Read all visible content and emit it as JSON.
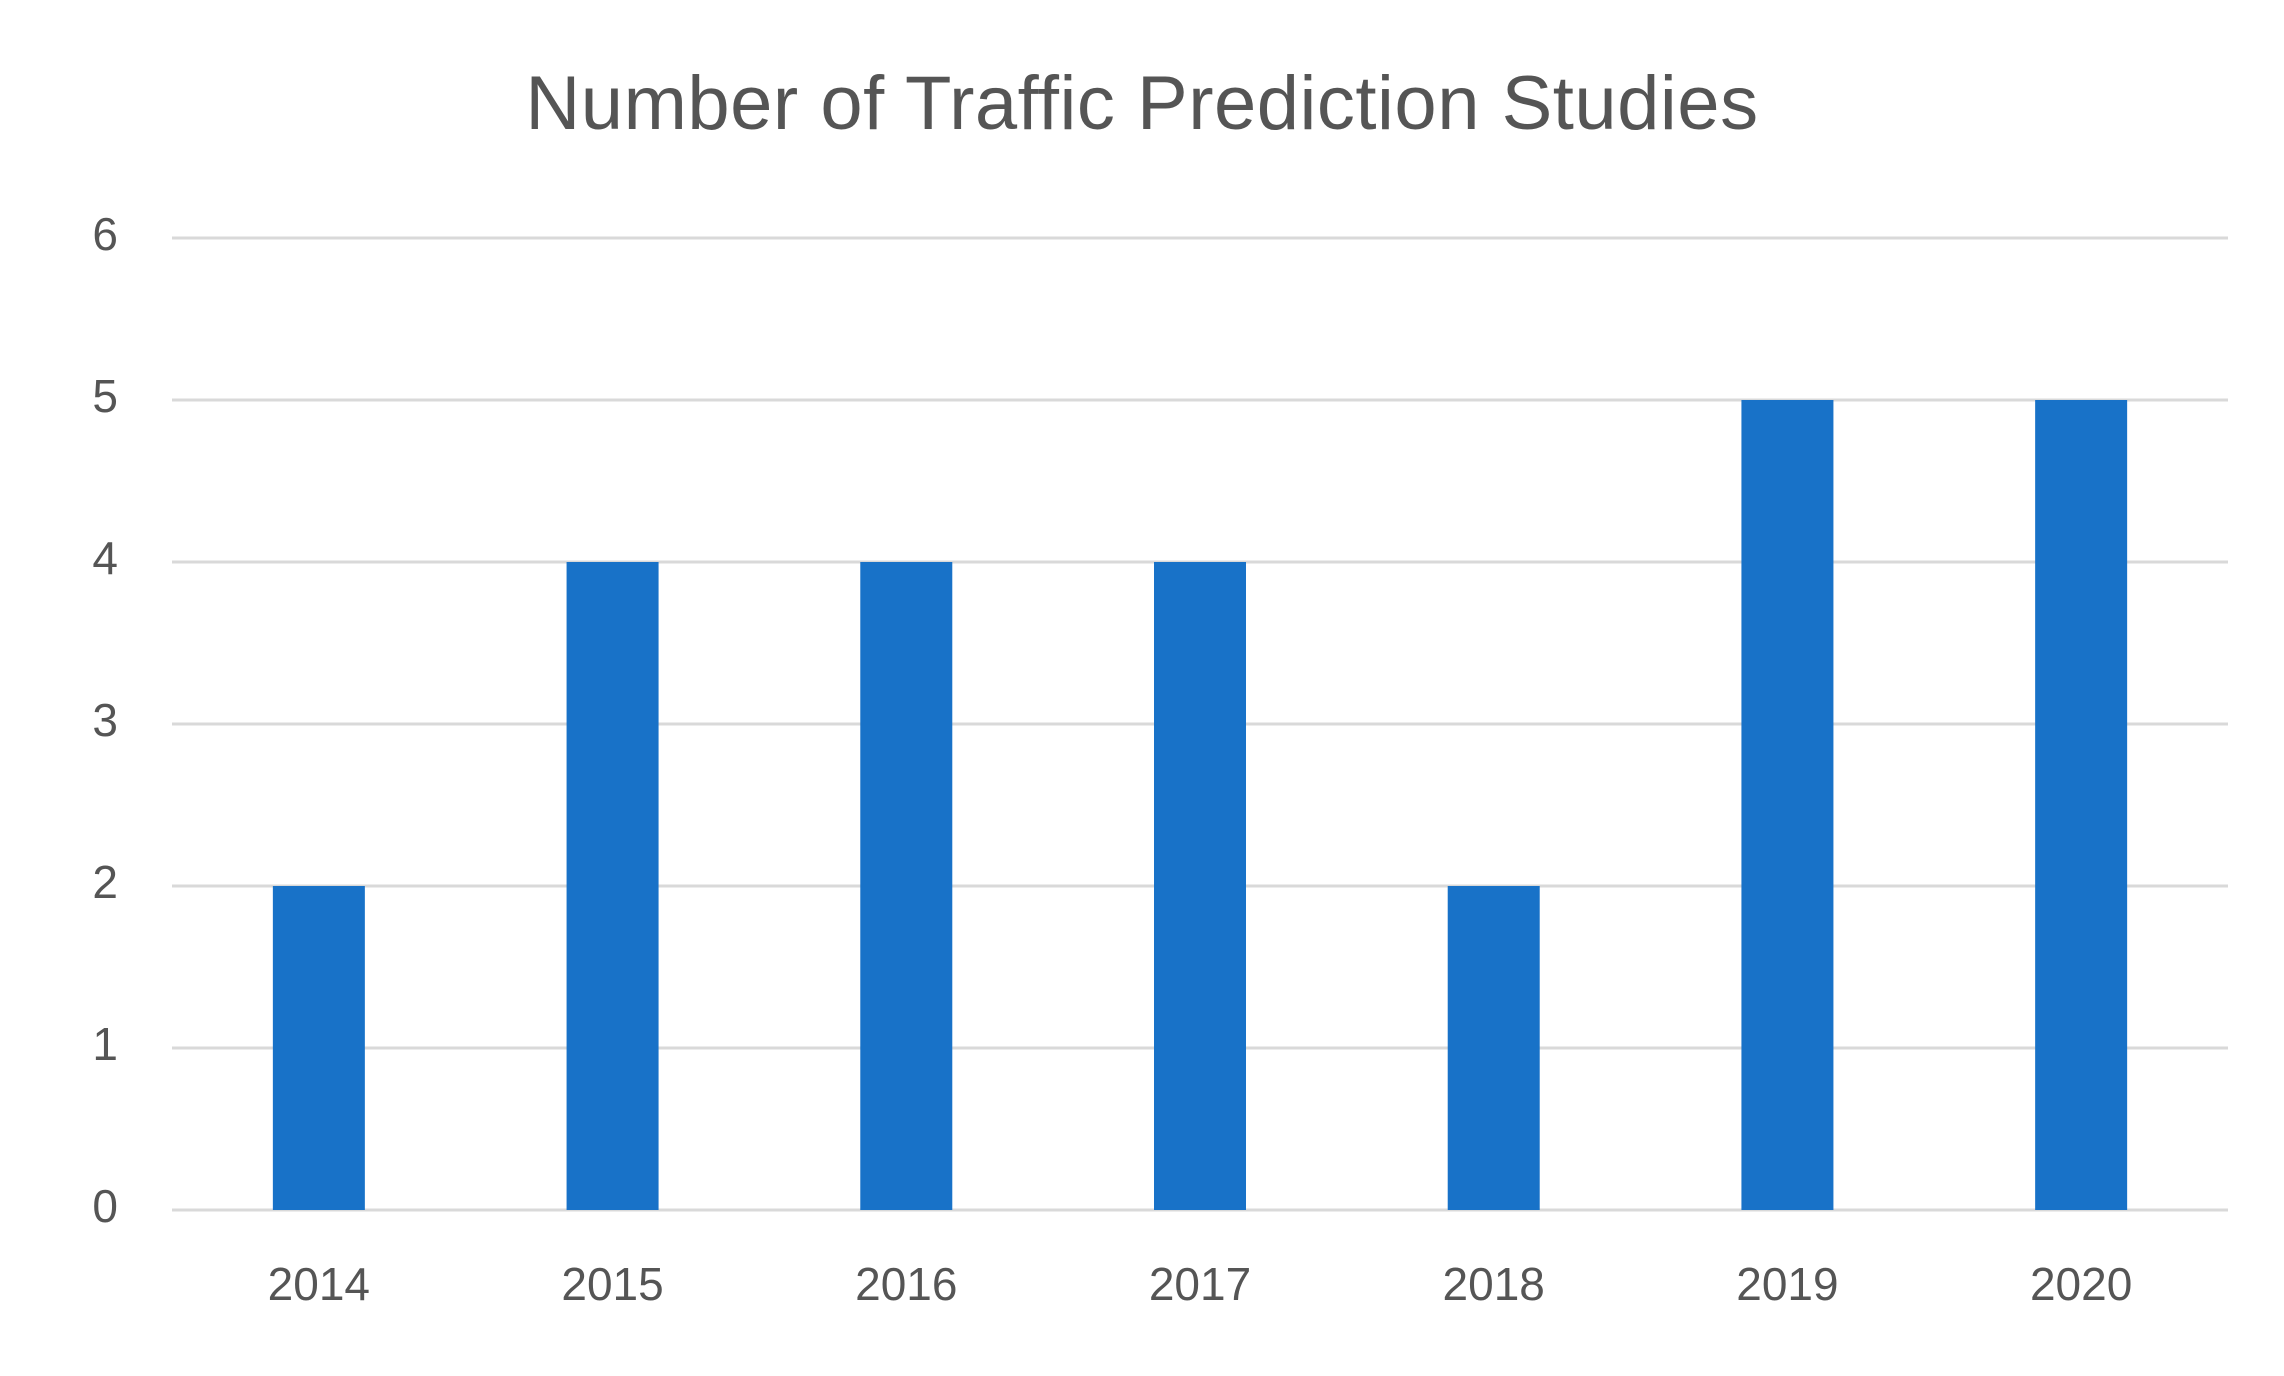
{
  "chart_data": {
    "type": "bar",
    "title": "Number of Traffic Prediction Studies",
    "xlabel": "",
    "ylabel": "",
    "categories": [
      "2014",
      "2015",
      "2016",
      "2017",
      "2018",
      "2019",
      "2020"
    ],
    "values": [
      2,
      4,
      4,
      4,
      2,
      5,
      5
    ],
    "ylim": [
      0,
      6
    ],
    "yticks": [
      "0",
      "1",
      "2",
      "3",
      "4",
      "5",
      "6"
    ],
    "grid": true,
    "legend": "none",
    "colors": {
      "bar": "#1872C8",
      "grid": "#D9D9D9",
      "text": "#555555"
    }
  }
}
